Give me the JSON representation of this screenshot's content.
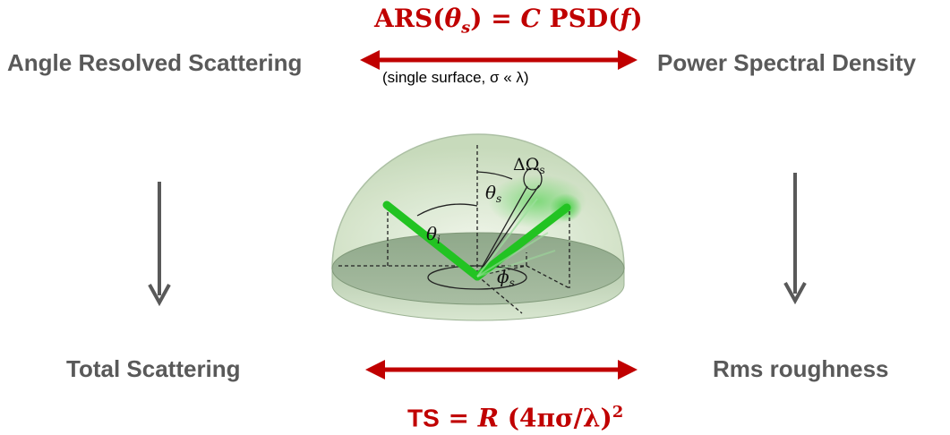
{
  "labels": {
    "ars": "Angle Resolved Scattering",
    "psd": "Power Spectral Density",
    "ts": "Total Scattering",
    "rms": "Rms roughness"
  },
  "formulas": {
    "top": {
      "lhs": "ARS",
      "theta": "θ",
      "sub": "s",
      "eq": " = ",
      "c": "C",
      "psd": " PSD(",
      "f": "f",
      "close": ")"
    },
    "top_note": "(single surface, σ « λ)",
    "bottom": {
      "ts": "TS",
      "eq": " = ",
      "r": "R",
      "expr": " (4πσ/λ)",
      "exp": "2"
    }
  },
  "diagram_labels": {
    "theta_s": "θ",
    "theta_s_sub": "s",
    "theta_i": "θ",
    "theta_i_sub": "i",
    "phi_s": "ϕ",
    "phi_s_sub": "s",
    "omega": "ΔΩ",
    "omega_sub": "s"
  },
  "colors": {
    "label": "#595959",
    "formula": "#c00000",
    "arrow_red": "#c00000",
    "arrow_gray": "#595959",
    "beam": "#22c322"
  }
}
